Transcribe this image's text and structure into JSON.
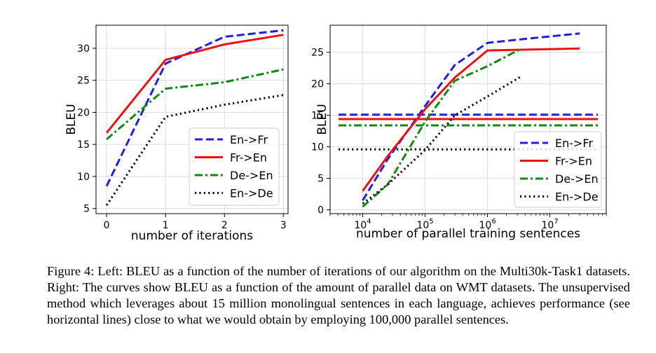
{
  "chart_data": [
    {
      "type": "line",
      "xlabel": "number of iterations",
      "ylabel": "BLEU",
      "xlim": [
        -0.18,
        3.08
      ],
      "ylim": [
        4.2,
        33.6
      ],
      "xticks": [
        0,
        1,
        2,
        3
      ],
      "yticks": [
        5,
        10,
        15,
        20,
        25,
        30
      ],
      "grid": true,
      "legend": "lower-right",
      "series": [
        {
          "name": "En->Fr",
          "color": "#1f1fdd",
          "dash": "dash",
          "x": [
            0,
            1,
            2,
            3
          ],
          "y": [
            8.5,
            27.6,
            31.8,
            32.8
          ]
        },
        {
          "name": "Fr->En",
          "color": "#ee1111",
          "dash": "solid",
          "x": [
            0,
            1,
            2,
            3
          ],
          "y": [
            16.8,
            28.2,
            30.6,
            32.1
          ]
        },
        {
          "name": "De->En",
          "color": "#118811",
          "dash": "dashdot",
          "x": [
            0,
            1,
            2,
            3
          ],
          "y": [
            15.8,
            23.7,
            24.7,
            26.7
          ]
        },
        {
          "name": "En->De",
          "color": "#000000",
          "dash": "dot",
          "x": [
            0,
            1,
            2,
            3
          ],
          "y": [
            5.5,
            19.3,
            21.2,
            22.7
          ]
        }
      ]
    },
    {
      "type": "line",
      "xlabel": "number of parallel training sentences",
      "ylabel": "BLEU",
      "xscale": "log",
      "xlim": [
        3000,
        80000000
      ],
      "ylim": [
        -0.6,
        29.3
      ],
      "xticks": [
        10000,
        100000,
        1000000,
        10000000
      ],
      "xticklabels": [
        "10",
        "10",
        "10",
        "10"
      ],
      "xtickexp": [
        "4",
        "5",
        "6",
        "7"
      ],
      "yticks": [
        0,
        5,
        10,
        15,
        20,
        25
      ],
      "grid": true,
      "legend": "lower-right",
      "series": [
        {
          "name": "En->Fr",
          "color": "#1f1fdd",
          "dash": "dash",
          "x": [
            10000,
            25000,
            100000,
            300000,
            1000000,
            3000000,
            30000000
          ],
          "y": [
            1.5,
            8.0,
            16.5,
            23.0,
            26.5,
            27.0,
            28.0
          ]
        },
        {
          "name": "Fr->En",
          "color": "#ee1111",
          "dash": "solid",
          "x": [
            10000,
            25000,
            100000,
            300000,
            1000000,
            3000000,
            30000000
          ],
          "y": [
            3.0,
            8.5,
            16.0,
            21.0,
            25.3,
            25.4,
            25.6
          ]
        },
        {
          "name": "De->En",
          "color": "#118811",
          "dash": "dashdot",
          "x": [
            10000,
            25000,
            100000,
            300000,
            1000000,
            3500000
          ],
          "y": [
            0.5,
            4.0,
            14.0,
            20.5,
            22.8,
            25.6
          ]
        },
        {
          "name": "En->De",
          "color": "#000000",
          "dash": "dot",
          "x": [
            10000,
            25000,
            100000,
            300000,
            1000000,
            3500000
          ],
          "y": [
            1.0,
            4.0,
            9.5,
            15.0,
            18.0,
            21.2
          ]
        }
      ],
      "hlines": [
        {
          "series": "En->Fr",
          "color": "#1f1fdd",
          "dash": "dash",
          "y": 15.1
        },
        {
          "series": "Fr->En",
          "color": "#ee1111",
          "dash": "solid",
          "y": 14.4
        },
        {
          "series": "De->En",
          "color": "#118811",
          "dash": "dashdot",
          "y": 13.4
        },
        {
          "series": "En->De",
          "color": "#000000",
          "dash": "dot",
          "y": 9.6
        }
      ]
    }
  ],
  "caption": "Figure 4: Left: BLEU as a function of the number of iterations of our algorithm on the Multi30k-Task1 datasets. Right: The curves show BLEU as a function of the amount of parallel data on WMT datasets. The unsupervised method which leverages about 15 million monolingual sentences in each language, achieves performance (see horizontal lines) close to what we would obtain by employing 100,000 parallel sentences."
}
